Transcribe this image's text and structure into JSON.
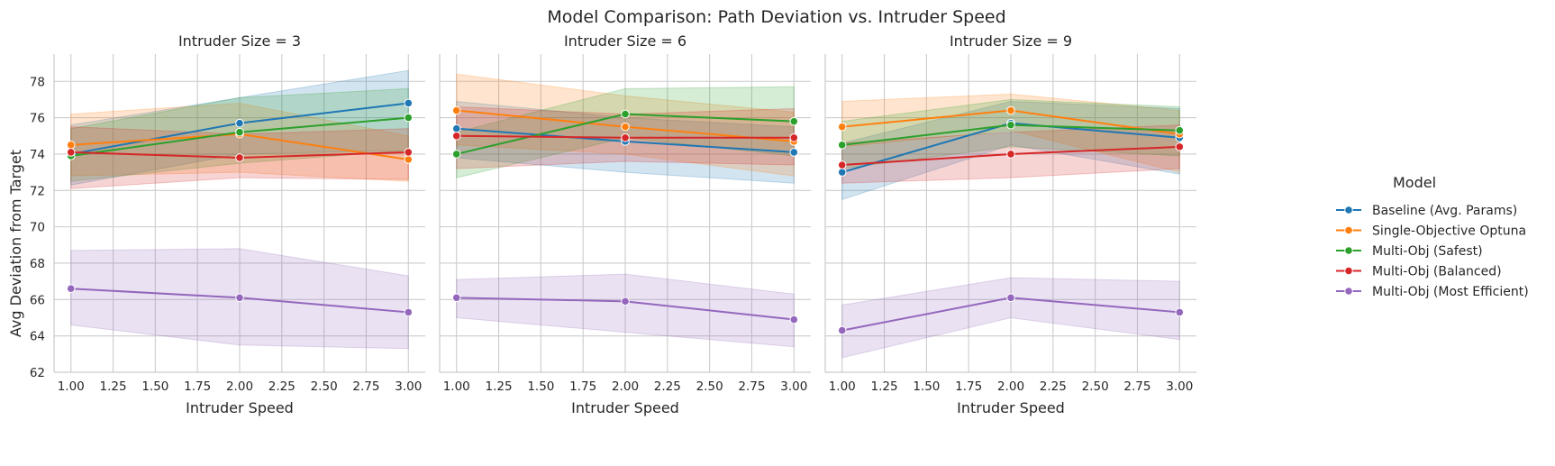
{
  "figure": {
    "title": "Model Comparison: Path Deviation vs. Intruder Speed"
  },
  "legend": {
    "title": "Model",
    "placement": "right"
  },
  "colors": {
    "Baseline (Avg. Params)": "#1f77b4",
    "Single-Objective Optuna": "#ff7f0e",
    "Multi-Obj (Safest)": "#2ca02c",
    "Multi-Obj (Balanced)": "#d62728",
    "Multi-Obj (Most Efficient)": "#9467bd"
  },
  "chart_data": {
    "type": "line",
    "xlabel": "Intruder Speed",
    "ylabel": "Avg Deviation from Target",
    "xlim": [
      0.9,
      3.1
    ],
    "ylim": [
      62,
      79.5
    ],
    "x_ticks": [
      "1.00",
      "1.25",
      "1.50",
      "1.75",
      "2.00",
      "2.25",
      "2.50",
      "2.75",
      "3.00"
    ],
    "y_ticks": [
      "62",
      "64",
      "66",
      "68",
      "70",
      "72",
      "74",
      "76",
      "78"
    ],
    "grid": true,
    "x": [
      1.0,
      2.0,
      3.0
    ],
    "series_names": [
      "Baseline (Avg. Params)",
      "Single-Objective Optuna",
      "Multi-Obj (Safest)",
      "Multi-Obj (Balanced)",
      "Multi-Obj (Most Efficient)"
    ],
    "panels": [
      {
        "title": "Intruder Size = 3",
        "series": [
          {
            "name": "Baseline (Avg. Params)",
            "values": [
              74.0,
              75.7,
              76.8
            ],
            "lower": [
              72.3,
              74.0,
              74.2
            ],
            "upper": [
              75.6,
              77.1,
              78.6
            ]
          },
          {
            "name": "Single-Objective Optuna",
            "values": [
              74.5,
              75.1,
              73.7
            ],
            "lower": [
              72.8,
              73.0,
              72.5
            ],
            "upper": [
              76.2,
              76.8,
              75.0
            ]
          },
          {
            "name": "Multi-Obj (Safest)",
            "values": [
              73.9,
              75.2,
              76.0
            ],
            "lower": [
              72.5,
              73.5,
              74.2
            ],
            "upper": [
              75.4,
              77.1,
              77.6
            ]
          },
          {
            "name": "Multi-Obj (Balanced)",
            "values": [
              74.1,
              73.8,
              74.1
            ],
            "lower": [
              72.1,
              72.7,
              72.6
            ],
            "upper": [
              75.5,
              75.1,
              75.4
            ]
          },
          {
            "name": "Multi-Obj (Most Efficient)",
            "values": [
              66.6,
              66.1,
              65.3
            ],
            "lower": [
              64.6,
              63.5,
              63.3
            ],
            "upper": [
              68.7,
              68.8,
              67.3
            ]
          }
        ]
      },
      {
        "title": "Intruder Size = 6",
        "series": [
          {
            "name": "Baseline (Avg. Params)",
            "values": [
              75.4,
              74.7,
              74.1
            ],
            "lower": [
              73.8,
              73.0,
              72.4
            ],
            "upper": [
              76.9,
              76.0,
              75.5
            ]
          },
          {
            "name": "Single-Objective Optuna",
            "values": [
              76.4,
              75.5,
              74.7
            ],
            "lower": [
              74.5,
              74.0,
              72.8
            ],
            "upper": [
              78.4,
              77.2,
              76.3
            ]
          },
          {
            "name": "Multi-Obj (Safest)",
            "values": [
              74.0,
              76.2,
              75.8
            ],
            "lower": [
              72.7,
              74.9,
              73.9
            ],
            "upper": [
              75.2,
              77.6,
              77.7
            ]
          },
          {
            "name": "Multi-Obj (Balanced)",
            "values": [
              75.0,
              74.9,
              74.9
            ],
            "lower": [
              73.2,
              73.6,
              73.4
            ],
            "upper": [
              76.6,
              76.2,
              76.5
            ]
          },
          {
            "name": "Multi-Obj (Most Efficient)",
            "values": [
              66.1,
              65.9,
              64.9
            ],
            "lower": [
              65.0,
              64.2,
              63.4
            ],
            "upper": [
              67.1,
              67.4,
              66.3
            ]
          }
        ]
      },
      {
        "title": "Intruder Size = 9",
        "series": [
          {
            "name": "Baseline (Avg. Params)",
            "values": [
              73.0,
              75.7,
              74.9
            ],
            "lower": [
              71.5,
              74.5,
              72.9
            ],
            "upper": [
              74.6,
              76.9,
              76.5
            ]
          },
          {
            "name": "Single-Objective Optuna",
            "values": [
              75.5,
              76.4,
              75.1
            ],
            "lower": [
              74.4,
              75.3,
              73.0
            ],
            "upper": [
              76.9,
              77.3,
              76.4
            ]
          },
          {
            "name": "Multi-Obj (Safest)",
            "values": [
              74.5,
              75.6,
              75.3
            ],
            "lower": [
              73.2,
              74.4,
              73.9
            ],
            "upper": [
              75.8,
              77.0,
              76.6
            ]
          },
          {
            "name": "Multi-Obj (Balanced)",
            "values": [
              73.4,
              74.0,
              74.4
            ],
            "lower": [
              72.4,
              72.7,
              73.2
            ],
            "upper": [
              74.6,
              75.2,
              75.6
            ]
          },
          {
            "name": "Multi-Obj (Most Efficient)",
            "values": [
              64.3,
              66.1,
              65.3
            ],
            "lower": [
              62.8,
              65.0,
              63.8
            ],
            "upper": [
              65.7,
              67.2,
              67.0
            ]
          }
        ]
      }
    ]
  }
}
